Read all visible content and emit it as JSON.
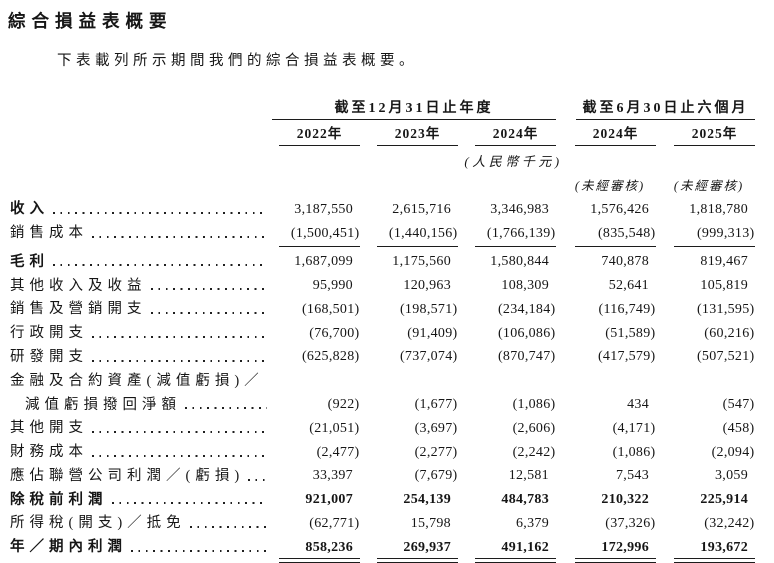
{
  "page": {
    "title": "綜合損益表概要",
    "intro": "下表載列所示期間我們的綜合損益表概要。"
  },
  "table": {
    "groups": [
      {
        "label": "截至12月31日止年度",
        "span": 3
      },
      {
        "label": "截至6月30日止六個月",
        "span": 2
      }
    ],
    "columns": [
      "2022年",
      "2023年",
      "2024年",
      "2024年",
      "2025年"
    ],
    "currency_note": "(人民幣千元)",
    "unaudited_note": "(未經審核)",
    "rows": [
      {
        "label": "收入",
        "bold": true,
        "values": [
          "3,187,550",
          "2,615,716",
          "3,346,983",
          "1,576,426",
          "1,818,780"
        ]
      },
      {
        "label": "銷售成本",
        "values": [
          "(1,500,451)",
          "(1,440,156)",
          "(1,766,139)",
          "(835,548)",
          "(999,313)"
        ],
        "rule": "single"
      },
      {
        "label": "毛利",
        "bold": true,
        "values": [
          "1,687,099",
          "1,175,560",
          "1,580,844",
          "740,878",
          "819,467"
        ]
      },
      {
        "label": "其他收入及收益",
        "values": [
          "95,990",
          "120,963",
          "108,309",
          "52,641",
          "105,819"
        ]
      },
      {
        "label": "銷售及營銷開支",
        "values": [
          "(168,501)",
          "(198,571)",
          "(234,184)",
          "(116,749)",
          "(131,595)"
        ]
      },
      {
        "label": "行政開支",
        "values": [
          "(76,700)",
          "(91,409)",
          "(106,086)",
          "(51,589)",
          "(60,216)"
        ]
      },
      {
        "label": "研發開支",
        "values": [
          "(625,828)",
          "(737,074)",
          "(870,747)",
          "(417,579)",
          "(507,521)"
        ]
      },
      {
        "label": "金融及合約資產(減值虧損)／"
      },
      {
        "label": "減值虧損撥回淨額",
        "indent": true,
        "values": [
          "(922)",
          "(1,677)",
          "(1,086)",
          "434",
          "(547)"
        ]
      },
      {
        "label": "其他開支",
        "values": [
          "(21,051)",
          "(3,697)",
          "(2,606)",
          "(4,171)",
          "(458)"
        ]
      },
      {
        "label": "財務成本",
        "values": [
          "(2,477)",
          "(2,277)",
          "(2,242)",
          "(1,086)",
          "(2,094)"
        ]
      },
      {
        "label": "應佔聯營公司利潤／(虧損)",
        "values": [
          "33,397",
          "(7,679)",
          "12,581",
          "7,543",
          "3,059"
        ]
      },
      {
        "label": "除稅前利潤",
        "bold": true,
        "bold_values": true,
        "values": [
          "921,007",
          "254,139",
          "484,783",
          "210,322",
          "225,914"
        ]
      },
      {
        "label": "所得稅(開支)／抵免",
        "values": [
          "(62,771)",
          "15,798",
          "6,379",
          "(37,326)",
          "(32,242)"
        ]
      },
      {
        "label": "年／期內利潤",
        "bold": true,
        "bold_values": true,
        "values": [
          "858,236",
          "269,937",
          "491,162",
          "172,996",
          "193,672"
        ],
        "rule": "double"
      }
    ]
  }
}
